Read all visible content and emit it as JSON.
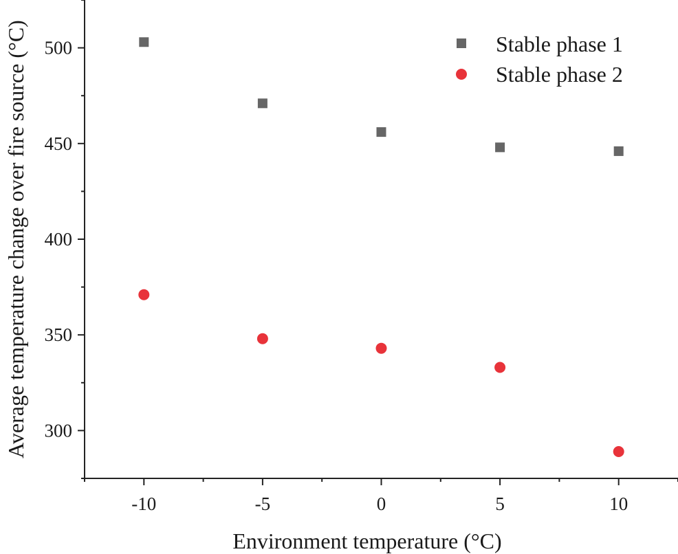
{
  "chart_data": {
    "type": "scatter",
    "xlabel": "Environment temperature (°C)",
    "ylabel": "Average temperature change over fire source (°C)",
    "xlim": [
      -12.5,
      12.5
    ],
    "ylim": [
      275,
      525
    ],
    "x_ticks": [
      -10,
      -5,
      0,
      5,
      10
    ],
    "x_tick_labels": [
      "-10",
      "-5",
      "0",
      "5",
      "10"
    ],
    "y_ticks": [
      300,
      350,
      400,
      450,
      500
    ],
    "y_tick_labels": [
      "300",
      "350",
      "400",
      "450",
      "500"
    ],
    "legend_position": "top-right",
    "series": [
      {
        "name": "Stable phase 1",
        "marker": "square",
        "color": "#666666",
        "x": [
          -10,
          -5,
          0,
          5,
          10
        ],
        "values": [
          503,
          471,
          456,
          448,
          446
        ]
      },
      {
        "name": "Stable phase 2",
        "marker": "circle",
        "color": "#e8333a",
        "x": [
          -10,
          -5,
          0,
          5,
          10
        ],
        "values": [
          371,
          348,
          343,
          333,
          289
        ]
      }
    ]
  }
}
